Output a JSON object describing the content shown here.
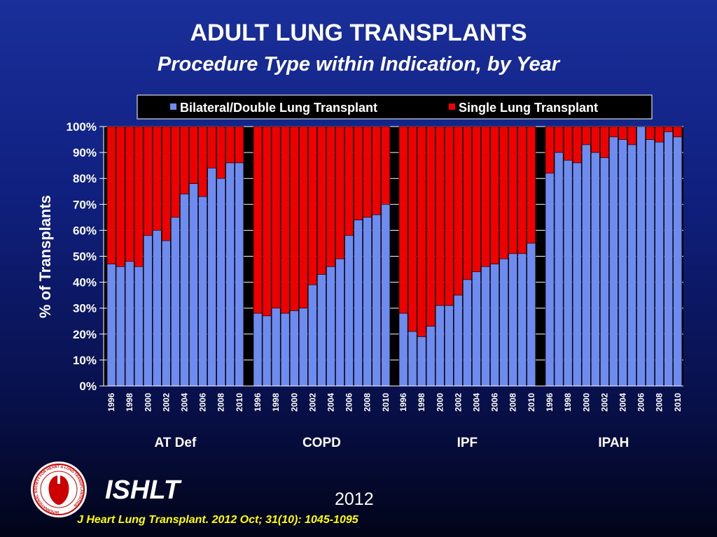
{
  "slide": {
    "title": "ADULT LUNG TRANSPLANTS",
    "subtitle": "Procedure Type within Indication, by Year",
    "ishlt": "ISHLT",
    "year": "2012",
    "citation": "J Heart Lung Transplant.  2012 Oct; 31(10): 1045-1095",
    "logo_text": "INTERNATIONAL SOCIETY FOR HEART & LUNG TRANSPLANTATION"
  },
  "colors": {
    "bilateral": "#6e8cf0",
    "single": "#ee0000",
    "plot_bg": "#000000",
    "text": "#ffffff"
  },
  "chart_data": {
    "type": "bar",
    "stacked": true,
    "ylabel": "% of Transplants",
    "ylim": [
      0,
      100
    ],
    "yticks": [
      "0%",
      "10%",
      "20%",
      "30%",
      "40%",
      "50%",
      "60%",
      "70%",
      "80%",
      "90%",
      "100%"
    ],
    "legend": [
      "Bilateral/Double Lung Transplant",
      "Single Lung Transplant"
    ],
    "legend_position": "top",
    "years": [
      1996,
      1997,
      1998,
      1999,
      2000,
      2001,
      2002,
      2003,
      2004,
      2005,
      2006,
      2007,
      2008,
      2009,
      2010
    ],
    "year_labels": [
      "1996",
      "1998",
      "2000",
      "2002",
      "2004",
      "2006",
      "2008",
      "2010"
    ],
    "groups": [
      {
        "name": "AT Def",
        "bilateral": [
          47,
          46,
          48,
          46,
          58,
          60,
          56,
          65,
          74,
          78,
          73,
          84,
          80,
          86,
          86
        ]
      },
      {
        "name": "COPD",
        "bilateral": [
          28,
          27,
          30,
          28,
          29,
          30,
          39,
          43,
          46,
          49,
          58,
          64,
          65,
          66,
          70
        ]
      },
      {
        "name": "IPF",
        "bilateral": [
          28,
          21,
          19,
          23,
          31,
          31,
          35,
          41,
          44,
          46,
          47,
          49,
          51,
          51,
          55
        ]
      },
      {
        "name": "IPAH",
        "bilateral": [
          82,
          90,
          87,
          86,
          93,
          90,
          88,
          96,
          95,
          93,
          100,
          95,
          94,
          98,
          96
        ]
      }
    ]
  }
}
